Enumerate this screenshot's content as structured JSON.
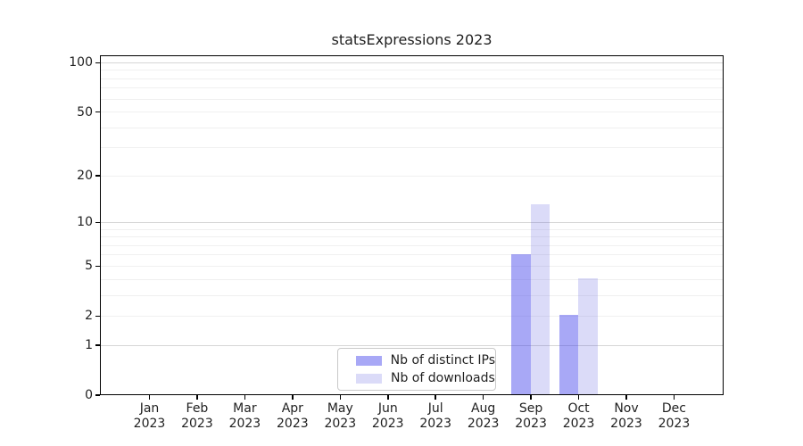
{
  "chart_data": {
    "type": "bar",
    "title": "statsExpressions 2023",
    "categories": [
      "Jan 2023",
      "Feb 2023",
      "Mar 2023",
      "Apr 2023",
      "May 2023",
      "Jun 2023",
      "Jul 2023",
      "Aug 2023",
      "Sep 2023",
      "Oct 2023",
      "Nov 2023",
      "Dec 2023"
    ],
    "series": [
      {
        "name": "Nb of distinct IPs",
        "color": "rgba(62,62,235,0.45)",
        "values": [
          0,
          0,
          0,
          0,
          0,
          0,
          0,
          0,
          6,
          2,
          0,
          0
        ]
      },
      {
        "name": "Nb of downloads",
        "color": "rgba(75,75,220,0.2)",
        "values": [
          0,
          0,
          0,
          0,
          0,
          0,
          0,
          0,
          13,
          4,
          0,
          0
        ]
      }
    ],
    "y_scale": "log1p",
    "y_ticks": [
      0,
      1,
      2,
      5,
      10,
      20,
      50,
      100
    ],
    "y_major_gridlines": [
      1,
      10,
      100
    ],
    "y_minor_gridlines": [
      2,
      3,
      4,
      5,
      6,
      7,
      8,
      9,
      20,
      30,
      40,
      50,
      60,
      70,
      80,
      90
    ],
    "ylim": [
      0,
      111
    ],
    "xlabel": "",
    "ylabel": "",
    "grid": true,
    "legend_position": "lower center"
  },
  "colors": {
    "ips_bar": "rgba(62,62,235,0.45)",
    "downloads_bar": "rgba(75,75,220,0.2)",
    "ips_on_white": "#a8a8f6",
    "downloads_on_white": "#dbdbf8",
    "grid_major": "#d6d6d6",
    "grid_minor": "#f0f0f0",
    "axis": "#000000",
    "legend_border": "#c9c9c9",
    "text": "#1f1f1f"
  }
}
